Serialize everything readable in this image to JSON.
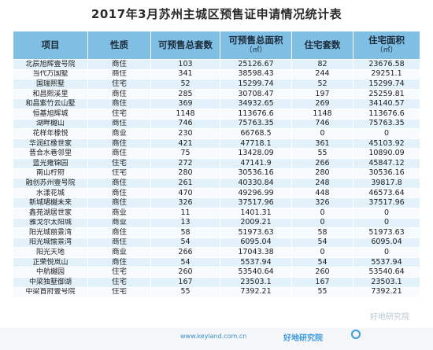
{
  "title": "2017年3月苏州主城区预售证申请情况统计表",
  "headers": [
    {
      "label": "项目",
      "unit": ""
    },
    {
      "label": "性质",
      "unit": ""
    },
    {
      "label": "可预售总套数",
      "unit": ""
    },
    {
      "label": "可预售总面积",
      "unit": "（㎡）"
    },
    {
      "label": "住宅套数",
      "unit": ""
    },
    {
      "label": "住宅面积",
      "unit": "（㎡）"
    }
  ],
  "rows": [
    [
      "北辰旭辉壹号院",
      "商住",
      "103",
      "25126.67",
      "82",
      "23676.58"
    ],
    [
      "当代万国墅",
      "商住",
      "341",
      "38598.43",
      "244",
      "29251.1"
    ],
    [
      "国瑞熙墅",
      "住宅",
      "52",
      "15299.74",
      "52",
      "15299.74"
    ],
    [
      "和昌熙溪里",
      "商住",
      "285",
      "30708.47",
      "197",
      "25259.81"
    ],
    [
      "和昌紫竹云山墅",
      "商住",
      "369",
      "34932.65",
      "269",
      "34140.57"
    ],
    [
      "恒基旭辉城",
      "住宅",
      "1148",
      "113676.6",
      "1148",
      "113676.6"
    ],
    [
      "湖畔樾山",
      "商住",
      "746",
      "75763.35",
      "746",
      "75763.35"
    ],
    [
      "花样年橡悦",
      "商业",
      "230",
      "66768.5",
      "0",
      "0"
    ],
    [
      "华润红橡世家",
      "商住",
      "421",
      "47718.1",
      "361",
      "45103.92"
    ],
    [
      "晋合水巷邻里",
      "商住",
      "75",
      "13428.09",
      "55",
      "10890.09"
    ],
    [
      "蓝光雍锦园",
      "住宅",
      "272",
      "47141.9",
      "266",
      "45847.12"
    ],
    [
      "南山柠府",
      "住宅",
      "280",
      "30536.16",
      "280",
      "30536.16"
    ],
    [
      "融创苏州壹号院",
      "商住",
      "261",
      "40330.84",
      "248",
      "39817.8"
    ],
    [
      "水漾花城",
      "商住",
      "470",
      "49296.99",
      "448",
      "46573.64"
    ],
    [
      "新城珺樾未来",
      "商住",
      "326",
      "37517.96",
      "326",
      "37517.96"
    ],
    [
      "鑫苑湖居世家",
      "商业",
      "11",
      "1401.31",
      "0",
      "0"
    ],
    [
      "雅戈尔太阳城",
      "商业",
      "13",
      "2009.21",
      "0",
      "0"
    ],
    [
      "阳光城丽景湾",
      "商住",
      "58",
      "51973.63",
      "58",
      "51973.63"
    ],
    [
      "阳光城愉景湾",
      "商住",
      "54",
      "6095.04",
      "54",
      "6095.04"
    ],
    [
      "阳光天地",
      "商业",
      "266",
      "17043.38",
      "0",
      "0"
    ],
    [
      "正荣悦岚山",
      "商住",
      "54",
      "5537.94",
      "54",
      "5537.94"
    ],
    [
      "中航樾园",
      "住宅",
      "260",
      "53540.64",
      "260",
      "53540.64"
    ],
    [
      "中梁独墅御湖",
      "住宅",
      "167",
      "23503.1",
      "167",
      "23503.1"
    ],
    [
      "中梁首府壹号院",
      "住宅",
      "55",
      "7392.21",
      "55",
      "7392.21"
    ]
  ],
  "footer": {
    "site": "www.keyland.com.cn",
    "brand": "好地研究院",
    "watermark": "好地研究院"
  }
}
